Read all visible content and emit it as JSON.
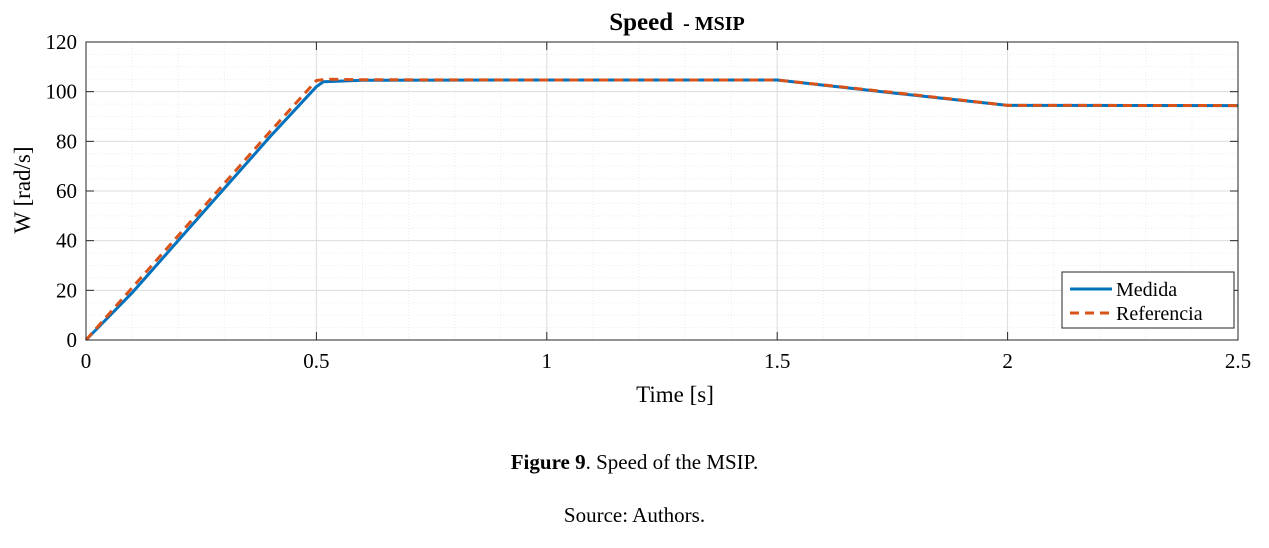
{
  "chart_data": {
    "type": "line",
    "title": "Speed",
    "subtitle": "- MSIP",
    "xlabel": "Time [s]",
    "ylabel": "W [rad/s]",
    "xlim": [
      0,
      2.5
    ],
    "ylim": [
      0,
      120
    ],
    "xticks": [
      0,
      0.5,
      1,
      1.5,
      2,
      2.5
    ],
    "xtick_labels": [
      "0",
      "0.5",
      "1",
      "1.5",
      "2",
      "2.5"
    ],
    "yticks": [
      0,
      20,
      40,
      60,
      80,
      100,
      120
    ],
    "ytick_labels": [
      "0",
      "20",
      "40",
      "60",
      "80",
      "100",
      "120"
    ],
    "grid": true,
    "legend_position": "bottom-right",
    "series": [
      {
        "name": "Medida",
        "color": "#0072BD",
        "style": "solid",
        "x": [
          0,
          0.1,
          0.2,
          0.3,
          0.4,
          0.5,
          0.515,
          0.6,
          1.0,
          1.5,
          1.75,
          2.0,
          2.5
        ],
        "y": [
          0,
          19,
          40,
          61,
          82,
          102,
          104,
          104.6,
          104.7,
          104.7,
          99.5,
          94.5,
          94.4
        ]
      },
      {
        "name": "Referencia",
        "color": "#D95319",
        "style": "dashed",
        "x": [
          0,
          0.1,
          0.2,
          0.3,
          0.4,
          0.5,
          0.52,
          0.6,
          1.0,
          1.5,
          1.75,
          2.0,
          2.5
        ],
        "y": [
          0,
          21,
          42,
          63,
          84,
          104.5,
          105,
          104.8,
          104.7,
          104.7,
          99.7,
          94.5,
          94.4
        ]
      }
    ]
  },
  "caption": {
    "figure_label": "Figure 9",
    "figure_text": ". Speed of the MSIP.",
    "source": "Source: Authors."
  }
}
